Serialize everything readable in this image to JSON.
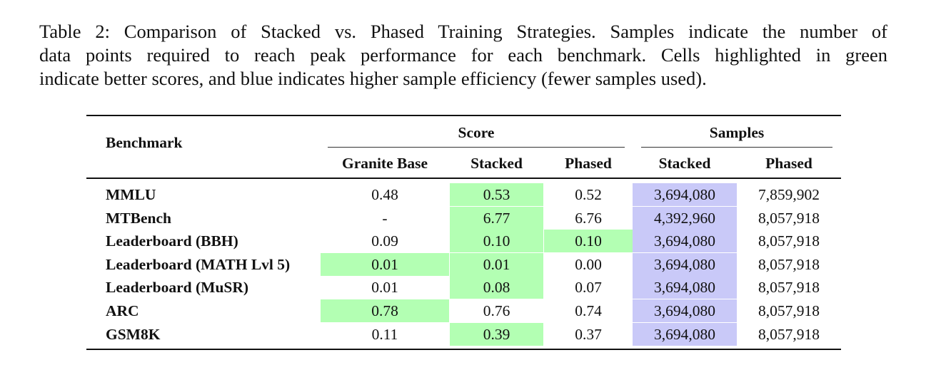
{
  "caption": {
    "line1": "Table 2: Comparison of Stacked vs. Phased Training Strategies. Samples indicate the number of",
    "line2": "data points required to reach peak performance for each benchmark. Cells highlighted in green",
    "line3": "indicate better scores, and blue indicates higher sample efficiency (fewer samples used)."
  },
  "table": {
    "header": {
      "benchmark": "Benchmark",
      "score_group": "Score",
      "samples_group": "Samples",
      "col_granite": "Granite Base",
      "col_score_stacked": "Stacked",
      "col_score_phased": "Phased",
      "col_samples_stacked": "Stacked",
      "col_samples_phased": "Phased"
    },
    "highlight_colors": {
      "better_score": "#b3ffb3",
      "sample_efficiency": "#c9c9f8"
    },
    "rows": [
      {
        "benchmark": "MMLU",
        "granite": "0.48",
        "stacked": "0.53",
        "phased": "0.52",
        "samples_stacked": "3,694,080",
        "samples_phased": "7,859,902",
        "hl": [
          "stacked"
        ]
      },
      {
        "benchmark": "MTBench",
        "granite": "-",
        "stacked": "6.77",
        "phased": "6.76",
        "samples_stacked": "4,392,960",
        "samples_phased": "8,057,918",
        "hl": [
          "stacked"
        ]
      },
      {
        "benchmark": "Leaderboard (BBH)",
        "granite": "0.09",
        "stacked": "0.10",
        "phased": "0.10",
        "samples_stacked": "3,694,080",
        "samples_phased": "8,057,918",
        "hl": [
          "stacked",
          "phased"
        ]
      },
      {
        "benchmark": "Leaderboard (MATH Lvl 5)",
        "granite": "0.01",
        "stacked": "0.01",
        "phased": "0.00",
        "samples_stacked": "3,694,080",
        "samples_phased": "8,057,918",
        "hl": [
          "granite",
          "stacked"
        ]
      },
      {
        "benchmark": "Leaderboard (MuSR)",
        "granite": "0.01",
        "stacked": "0.08",
        "phased": "0.07",
        "samples_stacked": "3,694,080",
        "samples_phased": "8,057,918",
        "hl": [
          "stacked"
        ]
      },
      {
        "benchmark": "ARC",
        "granite": "0.78",
        "stacked": "0.76",
        "phased": "0.74",
        "samples_stacked": "3,694,080",
        "samples_phased": "8,057,918",
        "hl": [
          "granite"
        ]
      },
      {
        "benchmark": "GSM8K",
        "granite": "0.11",
        "stacked": "0.39",
        "phased": "0.37",
        "samples_stacked": "3,694,080",
        "samples_phased": "8,057,918",
        "hl": [
          "stacked"
        ]
      }
    ]
  }
}
